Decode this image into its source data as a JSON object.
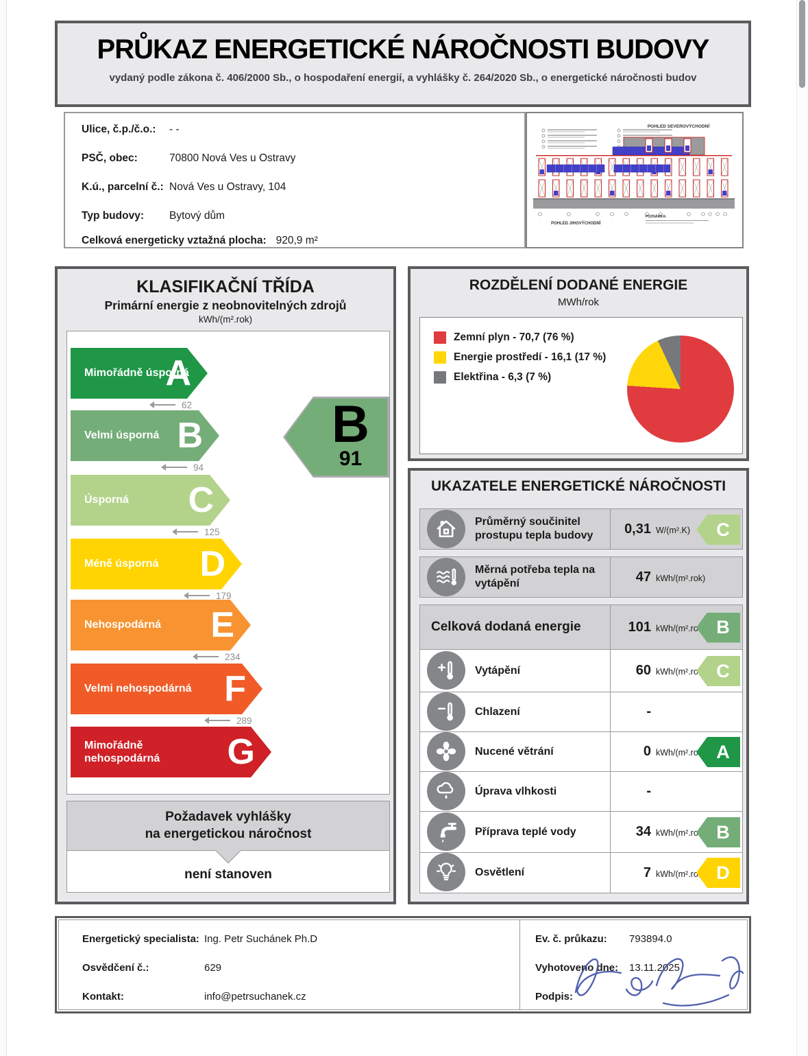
{
  "header": {
    "title": "PRŮKAZ ENERGETICKÉ NÁROČNOSTI BUDOVY",
    "subtitle": "vydaný podle zákona č. 406/2000 Sb., o hospodaření energií, a vyhlášky č. 264/2020 Sb., o energetické náročnosti budov"
  },
  "building_info": {
    "rows": [
      {
        "label": "Ulice, č.p./č.o.:",
        "value": "- -"
      },
      {
        "label": "PSČ, obec:",
        "value": "70800 Nová Ves u Ostravy"
      },
      {
        "label": "K.ú., parcelní č.:",
        "value": "Nová Ves u Ostravy, 104"
      },
      {
        "label": "Typ budovy:",
        "value": "Bytový dům"
      },
      {
        "label": "Celková energeticky vztažná plocha:",
        "value": "920,9 m²",
        "inline": true
      }
    ]
  },
  "building_drawing": {
    "title_top": "POHLED SEVEROVÝCHODNÍ",
    "title_bottom": "POHLED JIHOVÝCHODNÍ",
    "note_label": "POZNÁMKA:"
  },
  "classification": {
    "title": "KLASIFIKAČNÍ TŘÍDA",
    "subtitle": "Primární energie z neobnovitelných zdrojů",
    "unit": "kWh/(m².rok)",
    "bands": [
      {
        "letter": "A",
        "label": "Mimořádně úsporná",
        "color": "#1f9747",
        "threshold": "62"
      },
      {
        "letter": "B",
        "label": "Velmi úsporná",
        "color": "#74ad78",
        "threshold": "94"
      },
      {
        "letter": "C",
        "label": "Úsporná",
        "color": "#b3d38b",
        "threshold": "125"
      },
      {
        "letter": "D",
        "label": "Méně úsporná",
        "color": "#ffd400",
        "threshold": "179"
      },
      {
        "letter": "E",
        "label": "Nehospodárná",
        "color": "#f79331",
        "threshold": "234"
      },
      {
        "letter": "F",
        "label": "Velmi nehospodárná",
        "color": "#f05b28",
        "threshold": "289"
      },
      {
        "letter": "G",
        "label": "Mimořádně nehospodárná",
        "color": "#cf2127",
        "threshold": null
      }
    ],
    "result": {
      "letter": "B",
      "value": "91",
      "color": "#74ad78"
    },
    "requirement_line1": "Požadavek vyhlášky",
    "requirement_line2": "na energetickou náročnost",
    "requirement_value": "není stanoven"
  },
  "energy_distribution": {
    "title": "ROZDĚLENÍ DODANÉ ENERGIE",
    "unit": "MWh/rok",
    "legend": [
      {
        "label": "Zemní plyn - 70,7 (76 %)",
        "color": "#e03b3e"
      },
      {
        "label": "Energie prostředí - 16,1 (17 %)",
        "color": "#ffd60a"
      },
      {
        "label": "Elektřina - 6,3 (7 %)",
        "color": "#77787b"
      }
    ]
  },
  "chart_data": {
    "type": "pie",
    "title": "ROZDĚLENÍ DODANÉ ENERGIE",
    "unit": "MWh/rok",
    "labels": [
      "Zemní plyn",
      "Energie prostředí",
      "Elektřina"
    ],
    "values": [
      70.7,
      16.1,
      6.3
    ],
    "percents": [
      76,
      17,
      7
    ],
    "colors": [
      "#e03b3e",
      "#ffd60a",
      "#77787b"
    ],
    "legend_position": "left",
    "start_angle": "top-clockwise"
  },
  "indicators": {
    "title": "UKAZATELE ENERGETICKÉ NÁROČNOSTI",
    "rows": [
      {
        "icon": "house",
        "label": "Průměrný součinitel prostupu tepla budovy",
        "value": "0,31",
        "unit": "W/(m².K)",
        "cls": "C",
        "cls_color": "#b3d38b",
        "bg": "gray"
      },
      {
        "icon": "heat-waves",
        "label": "Měrná potřeba tepla na vytápění",
        "value": "47",
        "unit": "kWh/(m².rok)",
        "cls": null,
        "cls_color": null,
        "bg": "gray"
      },
      {
        "icon": null,
        "label": "Celková dodaná energie",
        "value": "101",
        "unit": "kWh/(m².rok)",
        "cls": "B",
        "cls_color": "#74ad78",
        "bg": "gray"
      },
      {
        "icon": "thermometer-plus",
        "label": "Vytápění",
        "value": "60",
        "unit": "kWh/(m².rok)",
        "cls": "C",
        "cls_color": "#b3d38b",
        "bg": "white"
      },
      {
        "icon": "thermometer-minus",
        "label": "Chlazení",
        "value": "-",
        "unit": "",
        "cls": null,
        "cls_color": null,
        "bg": "white"
      },
      {
        "icon": "fan",
        "label": "Nucené větrání",
        "value": "0",
        "unit": "kWh/(m².rok)",
        "cls": "A",
        "cls_color": "#1f9747",
        "bg": "white"
      },
      {
        "icon": "cloud-drop",
        "label": "Úprava vlhkosti",
        "value": "-",
        "unit": "",
        "cls": null,
        "cls_color": null,
        "bg": "white"
      },
      {
        "icon": "faucet",
        "label": "Příprava teplé vody",
        "value": "34",
        "unit": "kWh/(m².rok)",
        "cls": "B",
        "cls_color": "#74ad78",
        "bg": "white"
      },
      {
        "icon": "bulb",
        "label": "Osvětlení",
        "value": "7",
        "unit": "kWh/(m².rok)",
        "cls": "D",
        "cls_color": "#ffd400",
        "bg": "white"
      }
    ]
  },
  "footer": {
    "left": [
      {
        "label": "Energetický specialista:",
        "value": "Ing. Petr Suchánek Ph.D"
      },
      {
        "label": "Osvědčení č.:",
        "value": "629"
      },
      {
        "label": "Kontakt:",
        "value": "info@petrsuchanek.cz"
      }
    ],
    "right": [
      {
        "label": "Ev. č. průkazu:",
        "value": "793894.0"
      },
      {
        "label": "Vyhotoveno dne:",
        "value": "13.11.2025"
      },
      {
        "label": "Podpis:",
        "value": ""
      }
    ]
  }
}
